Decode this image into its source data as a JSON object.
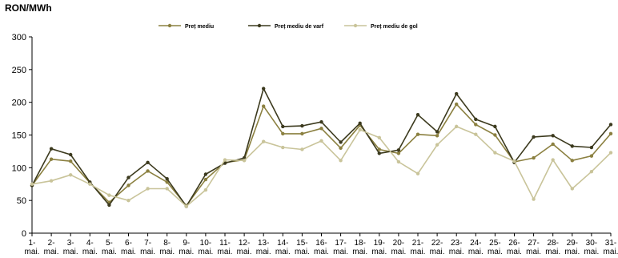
{
  "chart_data": {
    "type": "line",
    "ylabel": "RON/MWh",
    "ylim": [
      0,
      300
    ],
    "yticks": [
      0,
      50,
      100,
      150,
      200,
      250,
      300
    ],
    "grid": false,
    "legend_position": "top",
    "categories": [
      "1-mai.",
      "2-mai.",
      "3-mai.",
      "4-mai.",
      "5-mai.",
      "6-mai.",
      "7-mai.",
      "8-mai.",
      "9-mai.",
      "10-mai.",
      "11-mai.",
      "12-mai.",
      "13-mai.",
      "14-mai.",
      "15-mai.",
      "16-mai.",
      "17-mai.",
      "18-mai.",
      "19-mai.",
      "20-mai.",
      "21-mai.",
      "22-mai.",
      "23-mai.",
      "24-mai.",
      "25-mai.",
      "26-mai.",
      "27-mai.",
      "28-mai.",
      "29-mai.",
      "30-mai.",
      "31-mai."
    ],
    "series": [
      {
        "name": "Preț mediu",
        "color": "#8b8040",
        "values": [
          73,
          113,
          110,
          77,
          47,
          73,
          95,
          78,
          42,
          82,
          108,
          112,
          194,
          152,
          152,
          160,
          130,
          165,
          128,
          122,
          151,
          149,
          197,
          166,
          150,
          109,
          115,
          136,
          111,
          118,
          152
        ]
      },
      {
        "name": "Preț mediu de varf",
        "color": "#3c3a1e",
        "values": [
          73,
          129,
          120,
          78,
          43,
          85,
          108,
          83,
          41,
          90,
          107,
          115,
          221,
          163,
          164,
          170,
          139,
          168,
          122,
          127,
          181,
          155,
          213,
          174,
          163,
          108,
          147,
          149,
          133,
          131,
          166
        ]
      },
      {
        "name": "Preț mediu de gol",
        "color": "#c9c49a",
        "values": [
          75,
          80,
          89,
          75,
          58,
          50,
          68,
          68,
          41,
          66,
          112,
          111,
          140,
          131,
          128,
          141,
          111,
          158,
          146,
          109,
          91,
          135,
          163,
          151,
          123,
          110,
          52,
          112,
          68,
          94,
          123
        ]
      }
    ]
  }
}
